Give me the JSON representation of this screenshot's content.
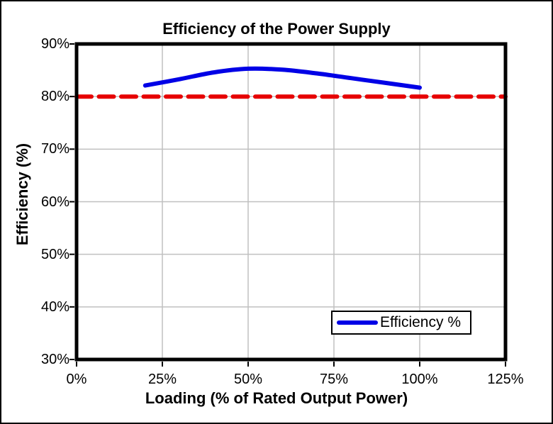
{
  "page": {
    "background": "#FFFFFF",
    "outer_border_color": "#000000"
  },
  "chart_data": {
    "type": "line",
    "title": "Efficiency of the Power Supply",
    "xlabel": "Loading (% of Rated Output Power)",
    "ylabel": "Efficiency (%)",
    "xlim": [
      0,
      125
    ],
    "ylim": [
      30,
      90
    ],
    "x_ticks": [
      0,
      25,
      50,
      75,
      100,
      125
    ],
    "x_tick_labels": [
      "0%",
      "25%",
      "50%",
      "75%",
      "100%",
      "125%"
    ],
    "y_ticks": [
      30,
      40,
      50,
      60,
      70,
      80,
      90
    ],
    "y_tick_labels": [
      "30%",
      "40%",
      "50%",
      "60%",
      "70%",
      "80%",
      "90%"
    ],
    "grid": true,
    "gridline_color": "#C0C0C0",
    "axis_color": "#000000",
    "plot_border_color": "#000000",
    "legend": {
      "position": "inside-bottom-right",
      "label": "Efficiency %"
    },
    "series": [
      {
        "name": "Efficiency %",
        "color": "#0000E6",
        "style": "solid",
        "smooth": true,
        "x": [
          20,
          30,
          40,
          50,
          60,
          70,
          80,
          90,
          100
        ],
        "y": [
          82.1,
          83.3,
          84.6,
          85.3,
          85.1,
          84.4,
          83.5,
          82.6,
          81.7
        ]
      },
      {
        "name": "80% reference line",
        "color": "#E60000",
        "style": "dashed",
        "smooth": false,
        "x": [
          0,
          125
        ],
        "y": [
          80,
          80
        ]
      }
    ]
  }
}
